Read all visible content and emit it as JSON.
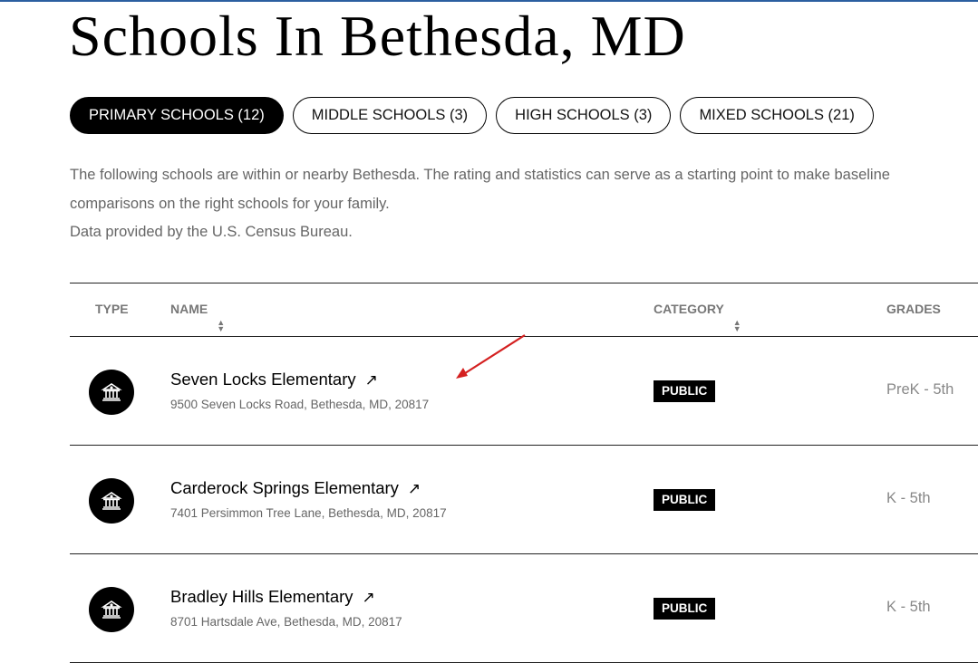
{
  "title": "Schools In Bethesda, MD",
  "tabs": [
    {
      "label": "PRIMARY SCHOOLS (12)",
      "active": true
    },
    {
      "label": "MIDDLE SCHOOLS (3)",
      "active": false
    },
    {
      "label": "HIGH SCHOOLS (3)",
      "active": false
    },
    {
      "label": "MIXED SCHOOLS (21)",
      "active": false
    }
  ],
  "description": {
    "line1": "The following schools are within or nearby Bethesda. The rating and statistics can serve as a starting point to make baseline comparisons on the right schools for your family.",
    "line2": "Data provided by the U.S. Census Bureau."
  },
  "table": {
    "headers": {
      "type": "TYPE",
      "name": "NAME",
      "category": "CATEGORY",
      "grades": "GRADES"
    },
    "rows": [
      {
        "icon": "school-building-icon",
        "name": "Seven Locks Elementary",
        "address": "9500 Seven Locks Road, Bethesda, MD, 20817",
        "category": "PUBLIC",
        "grades": "PreK - 5th"
      },
      {
        "icon": "school-building-icon",
        "name": "Carderock Springs Elementary",
        "address": "7401 Persimmon Tree Lane, Bethesda, MD, 20817",
        "category": "PUBLIC",
        "grades": "K - 5th"
      },
      {
        "icon": "school-building-icon",
        "name": "Bradley Hills Elementary",
        "address": "8701 Hartsdale Ave, Bethesda, MD, 20817",
        "category": "PUBLIC",
        "grades": "K - 5th"
      }
    ]
  },
  "colors": {
    "accent_bar": "#2b5fa0",
    "annotation_arrow": "#d42020"
  }
}
